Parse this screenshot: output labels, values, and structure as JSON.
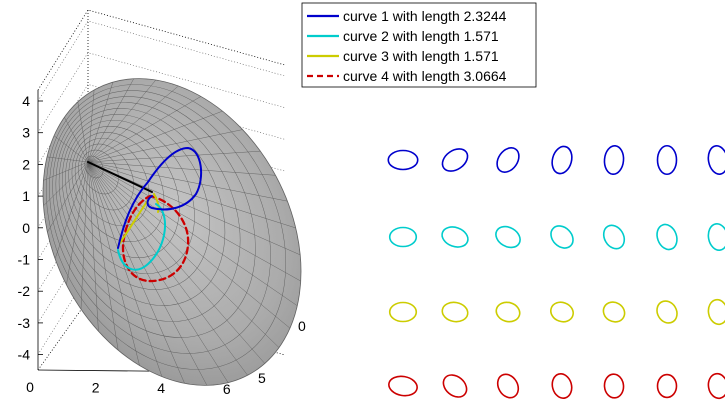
{
  "chart_data": [
    {
      "type": "3d-surface-with-curves",
      "title": "",
      "surface": "cone",
      "surface_color": "#a9a9a9",
      "axes": {
        "x_ticks": [
          "0",
          "2",
          "4",
          "6"
        ],
        "y_ticks": [
          "0",
          "5"
        ],
        "z_ticks": [
          "4",
          "3",
          "2",
          "1",
          "0",
          "-1",
          "-2",
          "-3",
          "-4"
        ],
        "grid": true
      },
      "series": [
        {
          "name": "curve 1 with length 2.3244",
          "color": "#0000cc",
          "style": "solid"
        },
        {
          "name": "curve 2 with length 1.571",
          "color": "#00cccc",
          "style": "solid"
        },
        {
          "name": "curve 3 with length 1.571",
          "color": "#cccc00",
          "style": "solid"
        },
        {
          "name": "curve 4 with length 3.0664",
          "color": "#cc0000",
          "style": "dashed"
        }
      ],
      "legend_position": "top-right"
    },
    {
      "type": "shape-sequence",
      "title": "",
      "rows": [
        {
          "color": "#0000cc",
          "shapes": [
            {
              "ratio": 1.55,
              "tilt": 0
            },
            {
              "ratio": 1.45,
              "tilt": -35
            },
            {
              "ratio": 1.4,
              "tilt": -55
            },
            {
              "ratio": 1.45,
              "tilt": -75
            },
            {
              "ratio": 1.5,
              "tilt": -85
            },
            {
              "ratio": 1.5,
              "tilt": 90
            },
            {
              "ratio": 1.5,
              "tilt": 80
            }
          ]
        },
        {
          "color": "#00cccc",
          "shapes": [
            {
              "ratio": 1.4,
              "tilt": 0
            },
            {
              "ratio": 1.4,
              "tilt": 20
            },
            {
              "ratio": 1.35,
              "tilt": 30
            },
            {
              "ratio": 1.3,
              "tilt": 45
            },
            {
              "ratio": 1.3,
              "tilt": 60
            },
            {
              "ratio": 1.35,
              "tilt": 70
            },
            {
              "ratio": 1.4,
              "tilt": 80
            }
          ]
        },
        {
          "color": "#cccc00",
          "shapes": [
            {
              "ratio": 1.4,
              "tilt": 0
            },
            {
              "ratio": 1.35,
              "tilt": 10
            },
            {
              "ratio": 1.25,
              "tilt": 15
            },
            {
              "ratio": 1.2,
              "tilt": 20
            },
            {
              "ratio": 1.15,
              "tilt": 30
            },
            {
              "ratio": 1.2,
              "tilt": 60
            },
            {
              "ratio": 1.3,
              "tilt": 80
            }
          ]
        },
        {
          "color": "#cc0000",
          "shapes": [
            {
              "ratio": 1.5,
              "tilt": 10
            },
            {
              "ratio": 1.35,
              "tilt": 40
            },
            {
              "ratio": 1.3,
              "tilt": 60
            },
            {
              "ratio": 1.3,
              "tilt": 75
            },
            {
              "ratio": 1.25,
              "tilt": 85
            },
            {
              "ratio": 1.2,
              "tilt": 90
            },
            {
              "ratio": 1.3,
              "tilt": 80
            }
          ]
        }
      ]
    }
  ]
}
